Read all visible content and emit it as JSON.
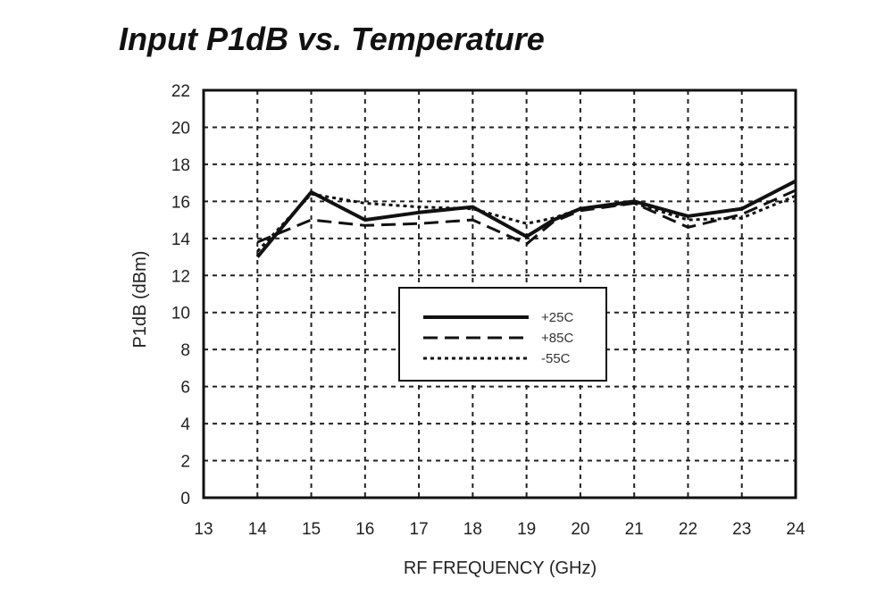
{
  "chart_data": {
    "type": "line",
    "title": "Input P1dB vs. Temperature",
    "xlabel": "RF FREQUENCY (GHz)",
    "ylabel": "P1dB  (dBm)",
    "xlim": [
      13,
      24
    ],
    "ylim": [
      0,
      22
    ],
    "x_ticks": [
      13,
      14,
      15,
      16,
      17,
      18,
      19,
      20,
      21,
      22,
      23,
      24
    ],
    "y_ticks": [
      0,
      2,
      4,
      6,
      8,
      10,
      12,
      14,
      16,
      18,
      20,
      22
    ],
    "grid": true,
    "legend_position": "center",
    "series": [
      {
        "name": "+25C",
        "style": "solid",
        "color": "#111111",
        "points": [
          [
            14,
            13.0
          ],
          [
            15,
            16.5
          ],
          [
            16,
            15.0
          ],
          [
            17,
            15.4
          ],
          [
            18,
            15.7
          ],
          [
            19,
            14.1
          ],
          [
            19.5,
            15.0
          ],
          [
            20,
            15.6
          ],
          [
            21,
            16.0
          ],
          [
            22,
            15.2
          ],
          [
            23,
            15.6
          ],
          [
            24,
            17.1
          ]
        ]
      },
      {
        "name": "+85C",
        "style": "dashed",
        "color": "#111111",
        "points": [
          [
            14,
            13.8
          ],
          [
            15,
            15.0
          ],
          [
            16,
            14.7
          ],
          [
            17,
            14.8
          ],
          [
            18,
            15.0
          ],
          [
            19,
            13.7
          ],
          [
            19.5,
            14.9
          ],
          [
            20,
            15.5
          ],
          [
            21,
            15.9
          ],
          [
            22,
            14.6
          ],
          [
            23,
            15.3
          ],
          [
            24,
            16.6
          ]
        ]
      },
      {
        "name": "-55C",
        "style": "dotted",
        "color": "#111111",
        "points": [
          [
            14,
            13.3
          ],
          [
            15,
            16.4
          ],
          [
            16,
            15.9
          ],
          [
            17,
            15.7
          ],
          [
            18,
            15.6
          ],
          [
            19,
            14.8
          ],
          [
            19.5,
            15.1
          ],
          [
            20,
            15.6
          ],
          [
            21,
            15.9
          ],
          [
            22,
            15.0
          ],
          [
            23,
            15.1
          ],
          [
            24,
            16.3
          ]
        ]
      }
    ]
  }
}
